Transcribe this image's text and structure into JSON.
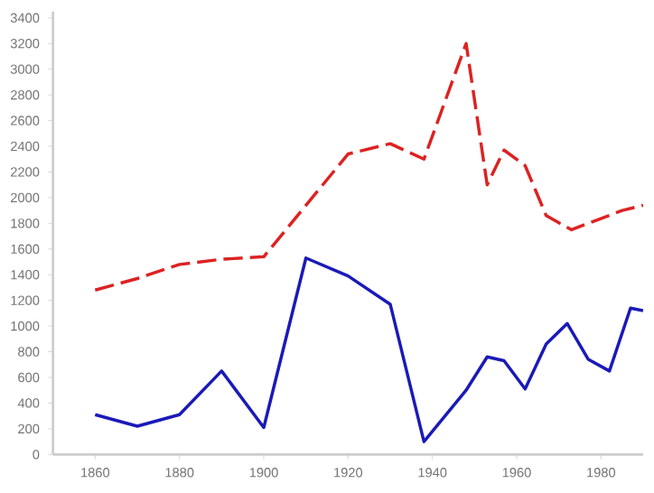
{
  "chart_data": {
    "type": "line",
    "xlim": [
      1850,
      1990
    ],
    "ylim": [
      0,
      3450
    ],
    "xticks": [
      1860,
      1880,
      1900,
      1920,
      1940,
      1960,
      1980
    ],
    "yticks": [
      0,
      200,
      400,
      600,
      800,
      1000,
      1200,
      1400,
      1600,
      1800,
      2000,
      2200,
      2400,
      2600,
      2800,
      3000,
      3200,
      3400
    ],
    "grid": false,
    "marker": "none",
    "series": [
      {
        "color": "#dd2222",
        "line_style": "dashed",
        "x": [
          1860,
          1870,
          1880,
          1890,
          1900,
          1920,
          1930,
          1938,
          1948,
          1953,
          1957,
          1962,
          1967,
          1973,
          1985,
          1990
        ],
        "values": [
          1280,
          1370,
          1480,
          1520,
          1540,
          2340,
          2420,
          2300,
          3200,
          2100,
          2370,
          2250,
          1860,
          1750,
          1900,
          1940
        ]
      },
      {
        "color": "#1a1ab8",
        "line_style": "solid",
        "x": [
          1860,
          1870,
          1880,
          1890,
          1900,
          1910,
          1920,
          1930,
          1938,
          1948,
          1953,
          1957,
          1962,
          1967,
          1972,
          1977,
          1982,
          1987,
          1990
        ],
        "values": [
          310,
          220,
          310,
          650,
          210,
          1530,
          1390,
          1170,
          100,
          500,
          760,
          730,
          510,
          860,
          1020,
          740,
          650,
          1140,
          1120
        ]
      }
    ]
  }
}
